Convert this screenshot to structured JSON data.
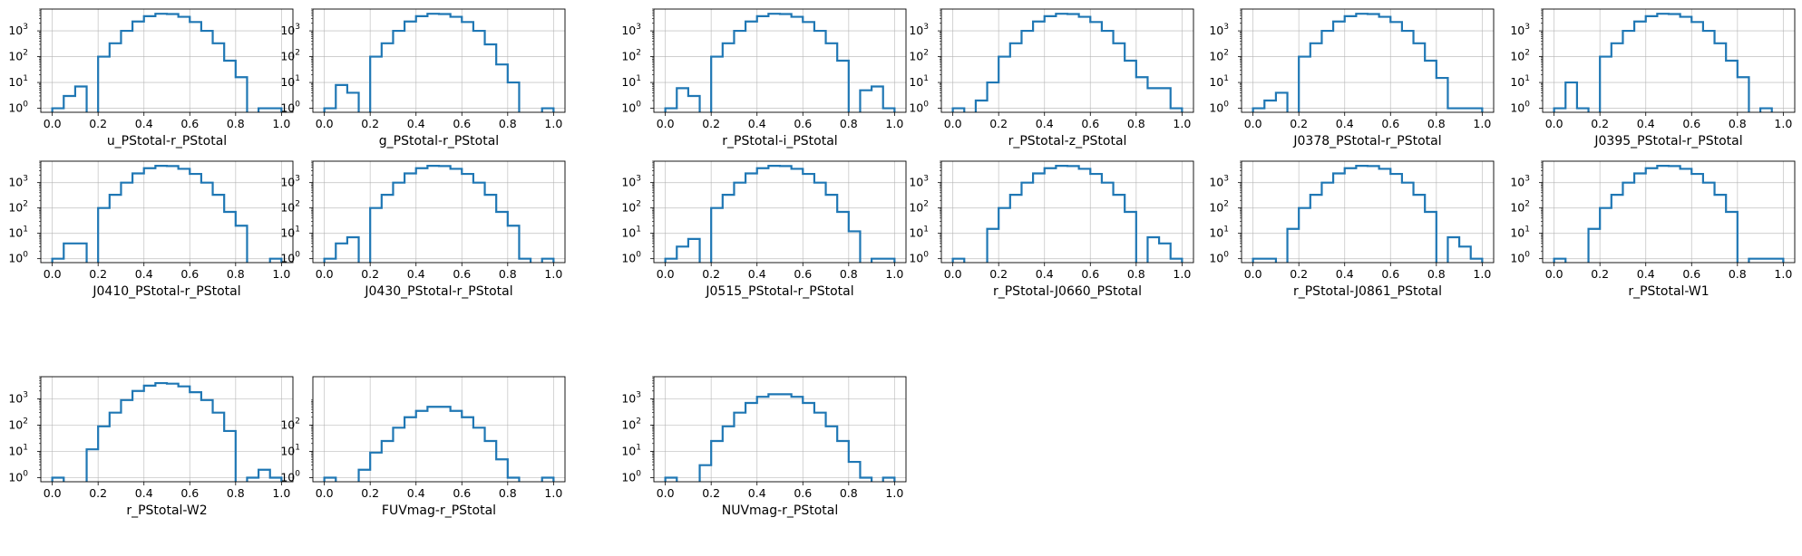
{
  "chart_data": [
    {
      "type": "histogram",
      "xlabel": "u_PStotal-r_PStotal",
      "x_ticks": [
        "0.0",
        "0.2",
        "0.4",
        "0.6",
        "0.8",
        "1.0"
      ],
      "y_scale": "log",
      "y_ticks": [
        "10^0",
        "10^1",
        "10^2",
        "10^3"
      ],
      "grid": true,
      "bin_edges": [
        0,
        0.05,
        0.1,
        0.15,
        0.2,
        0.25,
        0.3,
        0.35,
        0.4,
        0.45,
        0.5,
        0.55,
        0.6,
        0.65,
        0.7,
        0.75,
        0.8,
        0.85,
        0.9,
        0.95,
        1.0
      ],
      "counts": [
        1,
        3,
        7,
        0,
        100,
        330,
        1000,
        2300,
        3700,
        4600,
        4500,
        3500,
        2200,
        1000,
        330,
        70,
        16,
        0,
        1,
        1
      ],
      "color": "#1f77b4"
    },
    {
      "type": "histogram",
      "xlabel": "g_PStotal-r_PStotal",
      "x_ticks": [
        "0.0",
        "0.2",
        "0.4",
        "0.6",
        "0.8",
        "1.0"
      ],
      "y_scale": "log",
      "y_ticks": [
        "10^0",
        "10^1",
        "10^2",
        "10^3"
      ],
      "grid": true,
      "bin_edges": [
        0,
        0.05,
        0.1,
        0.15,
        0.2,
        0.25,
        0.3,
        0.35,
        0.4,
        0.45,
        0.5,
        0.55,
        0.6,
        0.65,
        0.7,
        0.75,
        0.8,
        0.85,
        0.9,
        0.95,
        1.0
      ],
      "counts": [
        1,
        8,
        4,
        0,
        100,
        330,
        1000,
        2300,
        3700,
        4600,
        4500,
        3500,
        2200,
        1000,
        300,
        50,
        10,
        0,
        0,
        1
      ],
      "color": "#1f77b4"
    },
    {
      "type": "histogram",
      "xlabel": "r_PStotal-i_PStotal",
      "x_ticks": [
        "0.0",
        "0.2",
        "0.4",
        "0.6",
        "0.8",
        "1.0"
      ],
      "y_scale": "log",
      "y_ticks": [
        "10^0",
        "10^1",
        "10^2",
        "10^3"
      ],
      "grid": true,
      "bin_edges": [
        0,
        0.05,
        0.1,
        0.15,
        0.2,
        0.25,
        0.3,
        0.35,
        0.4,
        0.45,
        0.5,
        0.55,
        0.6,
        0.65,
        0.7,
        0.75,
        0.8,
        0.85,
        0.9,
        0.95,
        1.0
      ],
      "counts": [
        1,
        6,
        3,
        0,
        100,
        330,
        1000,
        2300,
        3700,
        4600,
        4500,
        3500,
        2200,
        1000,
        330,
        70,
        0,
        5,
        7,
        1
      ],
      "color": "#1f77b4"
    },
    {
      "type": "histogram",
      "xlabel": "r_PStotal-z_PStotal",
      "x_ticks": [
        "0.0",
        "0.2",
        "0.4",
        "0.6",
        "0.8",
        "1.0"
      ],
      "y_scale": "log",
      "y_ticks": [
        "10^0",
        "10^1",
        "10^2",
        "10^3"
      ],
      "grid": true,
      "bin_edges": [
        0,
        0.05,
        0.1,
        0.15,
        0.2,
        0.25,
        0.3,
        0.35,
        0.4,
        0.45,
        0.5,
        0.55,
        0.6,
        0.65,
        0.7,
        0.75,
        0.8,
        0.85,
        0.9,
        0.95,
        1.0
      ],
      "counts": [
        1,
        0,
        2,
        10,
        100,
        330,
        1000,
        2300,
        3700,
        4600,
        4500,
        3500,
        2200,
        1000,
        330,
        70,
        16,
        6,
        6,
        1
      ],
      "color": "#1f77b4"
    },
    {
      "type": "histogram",
      "xlabel": "J0378_PStotal-r_PStotal",
      "x_ticks": [
        "0.0",
        "0.2",
        "0.4",
        "0.6",
        "0.8",
        "1.0"
      ],
      "y_scale": "log",
      "y_ticks": [
        "10^0",
        "10^1",
        "10^2",
        "10^3"
      ],
      "grid": true,
      "bin_edges": [
        0,
        0.05,
        0.1,
        0.15,
        0.2,
        0.25,
        0.3,
        0.35,
        0.4,
        0.45,
        0.5,
        0.55,
        0.6,
        0.65,
        0.7,
        0.75,
        0.8,
        0.85,
        0.9,
        0.95,
        1.0
      ],
      "counts": [
        1,
        2,
        4,
        0,
        100,
        330,
        1000,
        2300,
        3700,
        4600,
        4500,
        3500,
        2200,
        1000,
        330,
        70,
        15,
        1,
        1,
        1
      ],
      "color": "#1f77b4"
    },
    {
      "type": "histogram",
      "xlabel": "J0395_PStotal-r_PStotal",
      "x_ticks": [
        "0.0",
        "0.2",
        "0.4",
        "0.6",
        "0.8",
        "1.0"
      ],
      "y_scale": "log",
      "y_ticks": [
        "10^0",
        "10^1",
        "10^2",
        "10^3"
      ],
      "grid": true,
      "bin_edges": [
        0,
        0.05,
        0.1,
        0.15,
        0.2,
        0.25,
        0.3,
        0.35,
        0.4,
        0.45,
        0.5,
        0.55,
        0.6,
        0.65,
        0.7,
        0.75,
        0.8,
        0.85,
        0.9,
        0.95,
        1.0
      ],
      "counts": [
        1,
        10,
        1,
        0,
        100,
        330,
        1000,
        2300,
        3700,
        4600,
        4500,
        3500,
        2200,
        1000,
        330,
        70,
        16,
        0,
        1,
        0
      ],
      "color": "#1f77b4"
    },
    {
      "type": "histogram",
      "xlabel": "J0410_PStotal-r_PStotal",
      "x_ticks": [
        "0.0",
        "0.2",
        "0.4",
        "0.6",
        "0.8",
        "1.0"
      ],
      "y_scale": "log",
      "y_ticks": [
        "10^0",
        "10^1",
        "10^2",
        "10^3"
      ],
      "grid": true,
      "bin_edges": [
        0,
        0.05,
        0.1,
        0.15,
        0.2,
        0.25,
        0.3,
        0.35,
        0.4,
        0.45,
        0.5,
        0.55,
        0.6,
        0.65,
        0.7,
        0.75,
        0.8,
        0.85,
        0.9,
        0.95,
        1.0
      ],
      "counts": [
        1,
        4,
        4,
        0,
        100,
        330,
        1000,
        2300,
        3700,
        4600,
        4500,
        3500,
        2200,
        1000,
        330,
        70,
        20,
        0,
        0,
        1
      ],
      "color": "#1f77b4"
    },
    {
      "type": "histogram",
      "xlabel": "J0430_PStotal-r_PStotal",
      "x_ticks": [
        "0.0",
        "0.2",
        "0.4",
        "0.6",
        "0.8",
        "1.0"
      ],
      "y_scale": "log",
      "y_ticks": [
        "10^0",
        "10^1",
        "10^2",
        "10^3"
      ],
      "grid": true,
      "bin_edges": [
        0,
        0.05,
        0.1,
        0.15,
        0.2,
        0.25,
        0.3,
        0.35,
        0.4,
        0.45,
        0.5,
        0.55,
        0.6,
        0.65,
        0.7,
        0.75,
        0.8,
        0.85,
        0.9,
        0.95,
        1.0
      ],
      "counts": [
        1,
        4,
        7,
        0,
        100,
        330,
        1000,
        2300,
        3700,
        4600,
        4500,
        3500,
        2200,
        1000,
        330,
        70,
        20,
        1,
        0,
        1
      ],
      "color": "#1f77b4"
    },
    {
      "type": "histogram",
      "xlabel": "J0515_PStotal-r_PStotal",
      "x_ticks": [
        "0.0",
        "0.2",
        "0.4",
        "0.6",
        "0.8",
        "1.0"
      ],
      "y_scale": "log",
      "y_ticks": [
        "10^0",
        "10^1",
        "10^2",
        "10^3"
      ],
      "grid": true,
      "bin_edges": [
        0,
        0.05,
        0.1,
        0.15,
        0.2,
        0.25,
        0.3,
        0.35,
        0.4,
        0.45,
        0.5,
        0.55,
        0.6,
        0.65,
        0.7,
        0.75,
        0.8,
        0.85,
        0.9,
        0.95,
        1.0
      ],
      "counts": [
        1,
        3,
        6,
        0,
        100,
        330,
        1000,
        2300,
        3700,
        4600,
        4500,
        3500,
        2200,
        1000,
        330,
        70,
        12,
        0,
        1,
        1
      ],
      "color": "#1f77b4"
    },
    {
      "type": "histogram",
      "xlabel": "r_PStotal-J0660_PStotal",
      "x_ticks": [
        "0.0",
        "0.2",
        "0.4",
        "0.6",
        "0.8",
        "1.0"
      ],
      "y_scale": "log",
      "y_ticks": [
        "10^0",
        "10^1",
        "10^2",
        "10^3"
      ],
      "grid": true,
      "bin_edges": [
        0,
        0.05,
        0.1,
        0.15,
        0.2,
        0.25,
        0.3,
        0.35,
        0.4,
        0.45,
        0.5,
        0.55,
        0.6,
        0.65,
        0.7,
        0.75,
        0.8,
        0.85,
        0.9,
        0.95,
        1.0
      ],
      "counts": [
        1,
        0,
        0,
        15,
        100,
        330,
        1000,
        2300,
        3700,
        4600,
        4500,
        3500,
        2200,
        1000,
        330,
        70,
        0,
        7,
        4,
        1
      ],
      "color": "#1f77b4"
    },
    {
      "type": "histogram",
      "xlabel": "r_PStotal-J0861_PStotal",
      "x_ticks": [
        "0.0",
        "0.2",
        "0.4",
        "0.6",
        "0.8",
        "1.0"
      ],
      "y_scale": "log",
      "y_ticks": [
        "10^0",
        "10^1",
        "10^2",
        "10^3"
      ],
      "grid": true,
      "bin_edges": [
        0,
        0.05,
        0.1,
        0.15,
        0.2,
        0.25,
        0.3,
        0.35,
        0.4,
        0.45,
        0.5,
        0.55,
        0.6,
        0.65,
        0.7,
        0.75,
        0.8,
        0.85,
        0.9,
        0.95,
        1.0
      ],
      "counts": [
        1,
        1,
        0,
        15,
        100,
        330,
        1000,
        2300,
        3700,
        4600,
        4500,
        3500,
        2200,
        1000,
        330,
        70,
        0,
        7,
        3,
        1
      ],
      "color": "#1f77b4"
    },
    {
      "type": "histogram",
      "xlabel": "r_PStotal-W1",
      "x_ticks": [
        "0.0",
        "0.2",
        "0.4",
        "0.6",
        "0.8",
        "1.0"
      ],
      "y_scale": "log",
      "y_ticks": [
        "10^0",
        "10^1",
        "10^2",
        "10^3"
      ],
      "grid": true,
      "bin_edges": [
        0,
        0.05,
        0.1,
        0.15,
        0.2,
        0.25,
        0.3,
        0.35,
        0.4,
        0.45,
        0.5,
        0.55,
        0.6,
        0.65,
        0.7,
        0.75,
        0.8,
        0.85,
        0.9,
        0.95,
        1.0
      ],
      "counts": [
        1,
        0,
        0,
        15,
        100,
        330,
        1000,
        2300,
        3700,
        4600,
        4500,
        3500,
        2200,
        1000,
        330,
        70,
        0,
        1,
        1,
        1
      ],
      "color": "#1f77b4"
    },
    {
      "type": "histogram",
      "xlabel": "r_PStotal-W2",
      "x_ticks": [
        "0.0",
        "0.2",
        "0.4",
        "0.6",
        "0.8",
        "1.0"
      ],
      "y_scale": "log",
      "y_ticks": [
        "10^0",
        "10^1",
        "10^2",
        "10^3"
      ],
      "grid": true,
      "bin_edges": [
        0,
        0.05,
        0.1,
        0.15,
        0.2,
        0.25,
        0.3,
        0.35,
        0.4,
        0.45,
        0.5,
        0.55,
        0.6,
        0.65,
        0.7,
        0.75,
        0.8,
        0.85,
        0.9,
        0.95,
        1.0
      ],
      "counts": [
        1,
        0,
        0,
        12,
        90,
        300,
        900,
        2000,
        3200,
        4000,
        3800,
        3000,
        1800,
        900,
        300,
        60,
        0,
        1,
        2,
        1
      ],
      "color": "#1f77b4"
    },
    {
      "type": "histogram",
      "xlabel": "FUVmag-r_PStotal",
      "x_ticks": [
        "0.0",
        "0.2",
        "0.4",
        "0.6",
        "0.8",
        "1.0"
      ],
      "y_scale": "log",
      "y_ticks": [
        "10^0",
        "10^1",
        "10^2"
      ],
      "grid": true,
      "bin_edges": [
        0,
        0.05,
        0.1,
        0.15,
        0.2,
        0.25,
        0.3,
        0.35,
        0.4,
        0.45,
        0.5,
        0.55,
        0.6,
        0.65,
        0.7,
        0.75,
        0.8,
        0.85,
        0.9,
        0.95,
        1.0
      ],
      "counts": [
        1,
        0,
        0,
        2,
        9,
        25,
        80,
        200,
        350,
        500,
        500,
        350,
        200,
        80,
        25,
        5,
        1,
        0,
        0,
        1
      ],
      "color": "#1f77b4"
    },
    {
      "type": "histogram",
      "xlabel": "NUVmag-r_PStotal",
      "x_ticks": [
        "0.0",
        "0.2",
        "0.4",
        "0.6",
        "0.8",
        "1.0"
      ],
      "y_scale": "log",
      "y_ticks": [
        "10^0",
        "10^1",
        "10^2",
        "10^3"
      ],
      "grid": true,
      "bin_edges": [
        0,
        0.05,
        0.1,
        0.15,
        0.2,
        0.25,
        0.3,
        0.35,
        0.4,
        0.45,
        0.5,
        0.55,
        0.6,
        0.65,
        0.7,
        0.75,
        0.8,
        0.85,
        0.9,
        0.95,
        1.0
      ],
      "counts": [
        1,
        0,
        0,
        3,
        25,
        90,
        300,
        700,
        1200,
        1500,
        1500,
        1200,
        700,
        300,
        90,
        25,
        4,
        1,
        0,
        1
      ],
      "color": "#1f77b4"
    }
  ]
}
